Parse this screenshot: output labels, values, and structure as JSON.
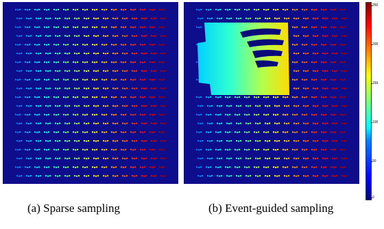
{
  "panels": [
    {
      "id": "a",
      "caption": "(a) Sparse sampling"
    },
    {
      "id": "b",
      "caption": "(b) Event-guided sampling"
    }
  ],
  "colorbar": {
    "ticks": [
      "250",
      "200",
      "150",
      "100",
      "50",
      "0"
    ],
    "tick_values": [
      250,
      200,
      150,
      100,
      50,
      0
    ],
    "range": [
      0,
      255
    ],
    "colormap": "jet"
  },
  "colors": {
    "background": "#0e0e8c",
    "page": "#ffffff"
  },
  "grid": {
    "rows": 20,
    "cols": 16
  }
}
